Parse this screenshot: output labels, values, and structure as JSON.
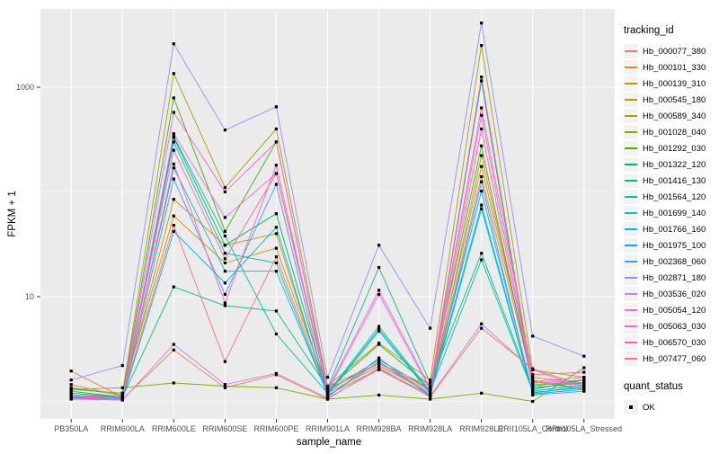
{
  "figure": {
    "background": "#FFFFFF",
    "panel_background": "#EBEBEB",
    "grid_color": "#FFFFFF",
    "tick_color": "#333333",
    "axis_text_color": "#4D4D4D",
    "point_color": "#000000",
    "legend_key_background": "#F2F2F2"
  },
  "chart_data": {
    "type": "line",
    "title": "",
    "xlabel": "sample_name",
    "ylabel": "FPKM + 1",
    "y_scale": "log10",
    "ylim": [
      0.7,
      5600
    ],
    "y_ticks": [
      10,
      1000
    ],
    "y_tick_labels": [
      "10",
      "1000"
    ],
    "y_minor_gridlines": [
      1,
      100
    ],
    "grid": true,
    "legend_position": "right",
    "legend_title": "tracking_id",
    "quant_legend": {
      "title": "quant_status",
      "items": [
        "OK"
      ]
    },
    "categories": [
      "PB350LA",
      "RRIM600LA",
      "RRIM600LE",
      "RRIM600SE",
      "RRIM600PE",
      "RRIM901LA",
      "RRIM928BA",
      "RRIM928LA",
      "RRIM928LE",
      "RRII105LA_Control",
      "RRII105LA_Stressed"
    ],
    "series": [
      {
        "name": "Hb_000077_380",
        "color": "#F8766D",
        "values": [
          1.95,
          1.1,
          48,
          2.4,
          24,
          1.2,
          2.2,
          1.2,
          140,
          1.6,
          1.3
        ]
      },
      {
        "name": "Hb_000101_330",
        "color": "#EA8331",
        "values": [
          1.1,
          1.05,
          3.1,
          1.35,
          1.8,
          1.05,
          2.1,
          1.1,
          5.0,
          2.05,
          1.4
        ]
      },
      {
        "name": "Hb_000139_310",
        "color": "#D89000",
        "values": [
          1.3,
          1.2,
          59,
          21,
          29,
          1.3,
          2.3,
          1.3,
          175,
          1.7,
          1.5
        ]
      },
      {
        "name": "Hb_000545_180",
        "color": "#C09B00",
        "values": [
          1.15,
          1.1,
          85,
          31,
          40,
          1.15,
          2.05,
          1.15,
          222,
          1.55,
          1.3
        ]
      },
      {
        "name": "Hb_000589_340",
        "color": "#A3A500",
        "values": [
          1.3,
          1.2,
          1350,
          110,
          400,
          1.4,
          3.6,
          1.6,
          2500,
          2.0,
          1.7
        ]
      },
      {
        "name": "Hb_001028_040",
        "color": "#7CAE00",
        "values": [
          1.3,
          1.35,
          1.5,
          1.4,
          1.35,
          1.05,
          1.15,
          1.05,
          1.2,
          1.0,
          2.1
        ]
      },
      {
        "name": "Hb_001292_030",
        "color": "#39B600",
        "values": [
          1.35,
          1.15,
          790,
          42,
          300,
          1.3,
          3.5,
          1.4,
          275,
          1.4,
          1.6
        ]
      },
      {
        "name": "Hb_001322_120",
        "color": "#00BB4E",
        "values": [
          1.2,
          1.1,
          330,
          31,
          62,
          1.25,
          2.5,
          1.3,
          1150,
          1.35,
          1.5
        ]
      },
      {
        "name": "Hb_001416_130",
        "color": "#00C087",
        "values": [
          1.25,
          1.1,
          12.4,
          8.2,
          7.3,
          1.35,
          19,
          1.5,
          26,
          1.3,
          1.6
        ]
      },
      {
        "name": "Hb_001564_120",
        "color": "#00C1A3",
        "values": [
          1.15,
          1.08,
          340,
          38,
          4.4,
          1.2,
          5.2,
          1.25,
          22.5,
          1.25,
          1.45
        ]
      },
      {
        "name": "Hb_001699_140",
        "color": "#00BFC4",
        "values": [
          1.1,
          1.06,
          300,
          26,
          21,
          1.15,
          4.7,
          1.2,
          75,
          1.2,
          1.4
        ]
      },
      {
        "name": "Hb_001766_160",
        "color": "#00BAE0",
        "values": [
          1.12,
          1.07,
          170,
          17.5,
          17.5,
          1.18,
          4.9,
          1.22,
          102,
          1.22,
          1.35
        ]
      },
      {
        "name": "Hb_001975_100",
        "color": "#00B0F6",
        "values": [
          1.08,
          1.05,
          42,
          13.5,
          46,
          1.12,
          2.4,
          1.15,
          69,
          1.18,
          1.3
        ]
      },
      {
        "name": "Hb_002368_060",
        "color": "#35A2FF",
        "values": [
          1.06,
          1.04,
          133,
          10.5,
          118,
          1.1,
          2.6,
          1.12,
          125,
          1.15,
          1.25
        ]
      },
      {
        "name": "Hb_002871_180",
        "color": "#9590FF",
        "values": [
          1.6,
          2.2,
          2600,
          390,
          650,
          1.7,
          31,
          5.0,
          4100,
          4.2,
          2.7
        ]
      },
      {
        "name": "Hb_003536_020",
        "color": "#C77CFF",
        "values": [
          1.05,
          1.03,
          3.5,
          1.45,
          1.85,
          1.08,
          2.0,
          1.12,
          5.5,
          2.0,
          1.35
        ]
      },
      {
        "name": "Hb_005054_120",
        "color": "#E76BF3",
        "values": [
          1.1,
          1.05,
          360,
          57,
          150,
          1.25,
          10.5,
          1.3,
          540,
          1.5,
          1.6
        ]
      },
      {
        "name": "Hb_005063_030",
        "color": "#FA62DB",
        "values": [
          1.15,
          1.08,
          575,
          100,
          300,
          1.3,
          11.5,
          1.35,
          1250,
          1.55,
          1.7
        ]
      },
      {
        "name": "Hb_006570_030",
        "color": "#FF62BC",
        "values": [
          1.1,
          1.06,
          185,
          8.7,
          180,
          1.2,
          2.2,
          1.25,
          400,
          1.45,
          1.5
        ]
      },
      {
        "name": "Hb_007477_060",
        "color": "#FF6A98",
        "values": [
          1.45,
          1.12,
          250,
          23,
          150,
          1.4,
          2.3,
          1.4,
          635,
          1.8,
          1.9
        ]
      }
    ]
  }
}
